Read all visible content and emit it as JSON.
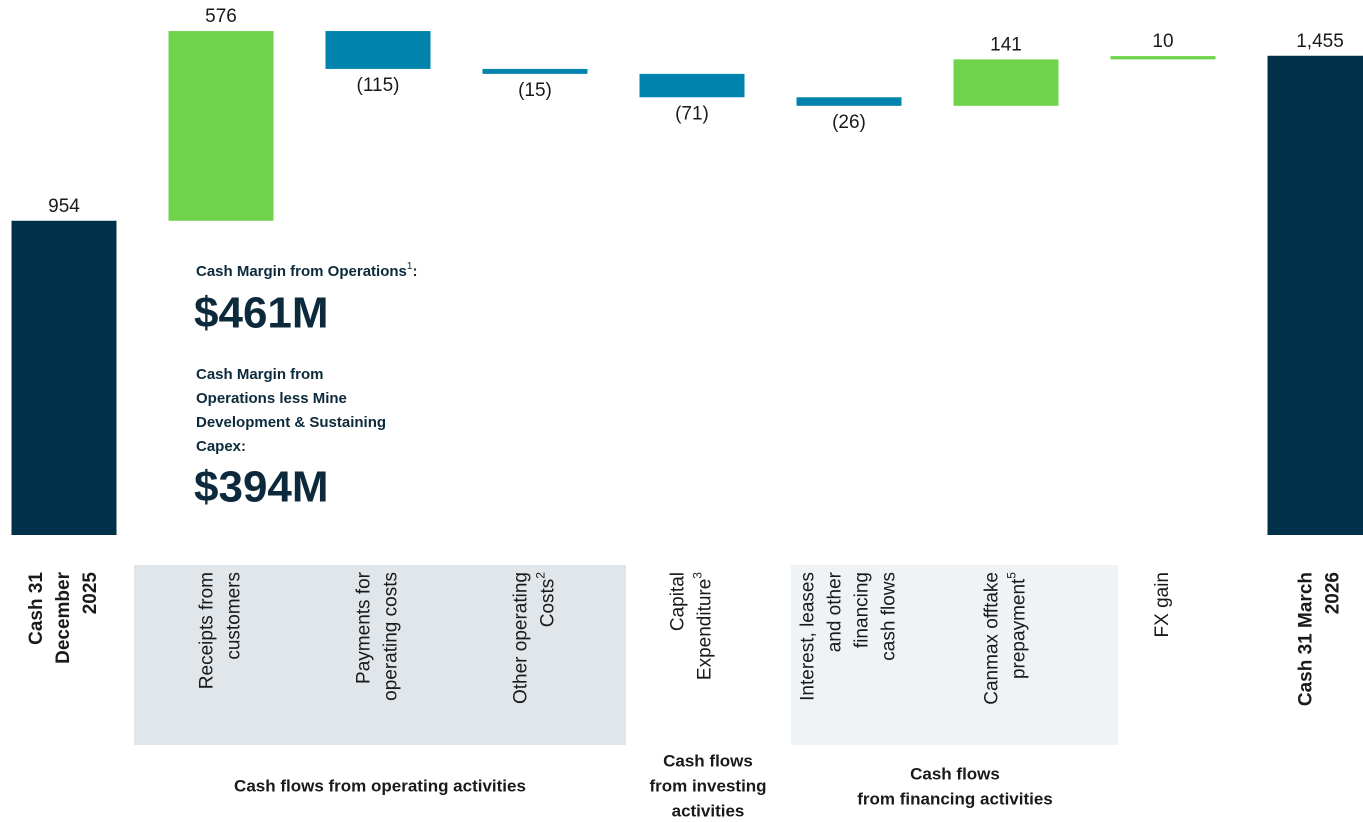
{
  "chart_data": {
    "type": "waterfall",
    "categories": [
      [
        "Cash 31",
        "December",
        "2025"
      ],
      [
        "Receipts from",
        "customers"
      ],
      [
        "Payments for",
        "operating costs"
      ],
      [
        "Other operating",
        "Costs"
      ],
      [
        "Capital",
        "Expenditure"
      ],
      [
        "Interest, leases",
        "and other",
        "financing",
        "cash flows"
      ],
      [
        "Canmax offtake",
        "prepayment"
      ],
      [
        "FX gain"
      ],
      [
        "Cash 31 March",
        "2026"
      ]
    ],
    "category_footnotes": {
      "3": "2",
      "4": "3",
      "6": "5"
    },
    "values": [
      954,
      576,
      -115,
      -15,
      -71,
      -26,
      141,
      10,
      1455
    ],
    "value_labels": [
      "954",
      "576",
      "(115)",
      "(15)",
      "(71)",
      "(26)",
      "141",
      "10",
      "1,455"
    ],
    "bar_types": [
      "total",
      "increase",
      "decrease",
      "decrease",
      "decrease",
      "decrease",
      "increase",
      "increase",
      "total"
    ],
    "colors": {
      "total": "#00304a",
      "increase": "#6fd44c",
      "decrease": "#0083ad"
    },
    "ylim": [
      0,
      1600
    ],
    "groups": [
      {
        "label": [
          "Cash flows from operating activities"
        ]
      },
      {
        "label": [
          "Cash flows",
          "from investing",
          "activities"
        ]
      },
      {
        "label": [
          "Cash flows",
          "from financing activities"
        ]
      }
    ],
    "annotations": {
      "margin_label": "Cash Margin from Operations",
      "margin_footnote": "1",
      "margin_colon": ":",
      "margin_value": "$461M",
      "capex_label": [
        "Cash Margin from",
        "Operations less Mine",
        "Development & Sustaining",
        "Capex:"
      ],
      "capex_value": "$394M"
    }
  }
}
